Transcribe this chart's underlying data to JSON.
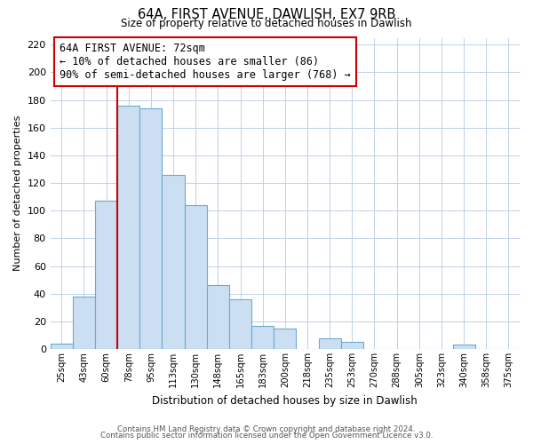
{
  "title": "64A, FIRST AVENUE, DAWLISH, EX7 9RB",
  "subtitle": "Size of property relative to detached houses in Dawlish",
  "xlabel": "Distribution of detached houses by size in Dawlish",
  "ylabel": "Number of detached properties",
  "bar_labels": [
    "25sqm",
    "43sqm",
    "60sqm",
    "78sqm",
    "95sqm",
    "113sqm",
    "130sqm",
    "148sqm",
    "165sqm",
    "183sqm",
    "200sqm",
    "218sqm",
    "235sqm",
    "253sqm",
    "270sqm",
    "288sqm",
    "305sqm",
    "323sqm",
    "340sqm",
    "358sqm",
    "375sqm"
  ],
  "bar_values": [
    4,
    38,
    107,
    176,
    174,
    126,
    104,
    46,
    36,
    17,
    15,
    0,
    8,
    5,
    0,
    0,
    0,
    0,
    3,
    0,
    0
  ],
  "bar_color": "#ccdff2",
  "bar_edge_color": "#6aaad4",
  "vline_color": "#cc0000",
  "annotation_line1": "64A FIRST AVENUE: 72sqm",
  "annotation_line2": "← 10% of detached houses are smaller (86)",
  "annotation_line3": "90% of semi-detached houses are larger (768) →",
  "annotation_box_edge": "#cc0000",
  "ylim": [
    0,
    225
  ],
  "yticks": [
    0,
    20,
    40,
    60,
    80,
    100,
    120,
    140,
    160,
    180,
    200,
    220
  ],
  "footer1": "Contains HM Land Registry data © Crown copyright and database right 2024.",
  "footer2": "Contains public sector information licensed under the Open Government Licence v3.0.",
  "background_color": "#ffffff",
  "grid_color": "#c0d0e8"
}
